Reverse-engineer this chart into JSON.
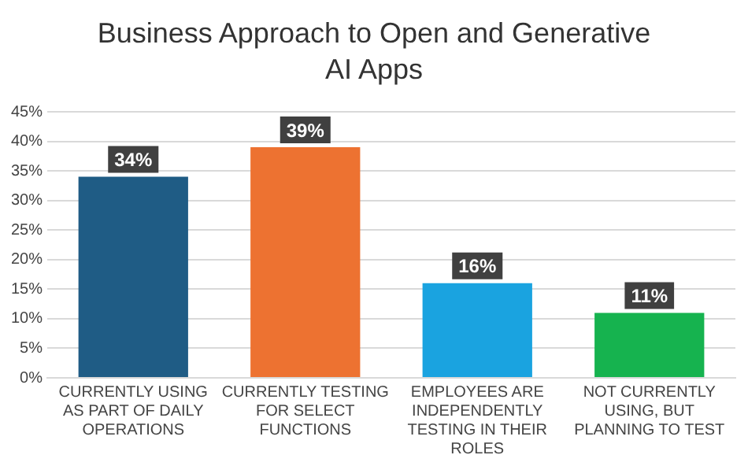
{
  "chart_data": {
    "type": "bar",
    "title": "Business Approach to Open and Generative AI Apps",
    "categories": [
      "CURRENTLY USING AS PART OF DAILY OPERATIONS",
      "CURRENTLY TESTING FOR SELECT FUNCTIONS",
      "EMPLOYEES ARE INDEPENDENTLY TESTING IN THEIR ROLES",
      "NOT CURRENTLY USING, BUT PLANNING TO TEST"
    ],
    "values": [
      34,
      39,
      16,
      11
    ],
    "colors": [
      "#1f5c85",
      "#ed7231",
      "#1aa3e0",
      "#16b34f"
    ],
    "value_labels": [
      "34%",
      "39%",
      "16%",
      "11%"
    ],
    "ylim": [
      0,
      45
    ],
    "yticks": [
      {
        "value": 0,
        "label": "0%"
      },
      {
        "value": 5,
        "label": "5%"
      },
      {
        "value": 10,
        "label": "10%"
      },
      {
        "value": 15,
        "label": "15%"
      },
      {
        "value": 20,
        "label": "20%"
      },
      {
        "value": 25,
        "label": "25%"
      },
      {
        "value": 30,
        "label": "30%"
      },
      {
        "value": 35,
        "label": "35%"
      },
      {
        "value": 40,
        "label": "40%"
      },
      {
        "value": 45,
        "label": "45%"
      }
    ],
    "grid": "y"
  }
}
